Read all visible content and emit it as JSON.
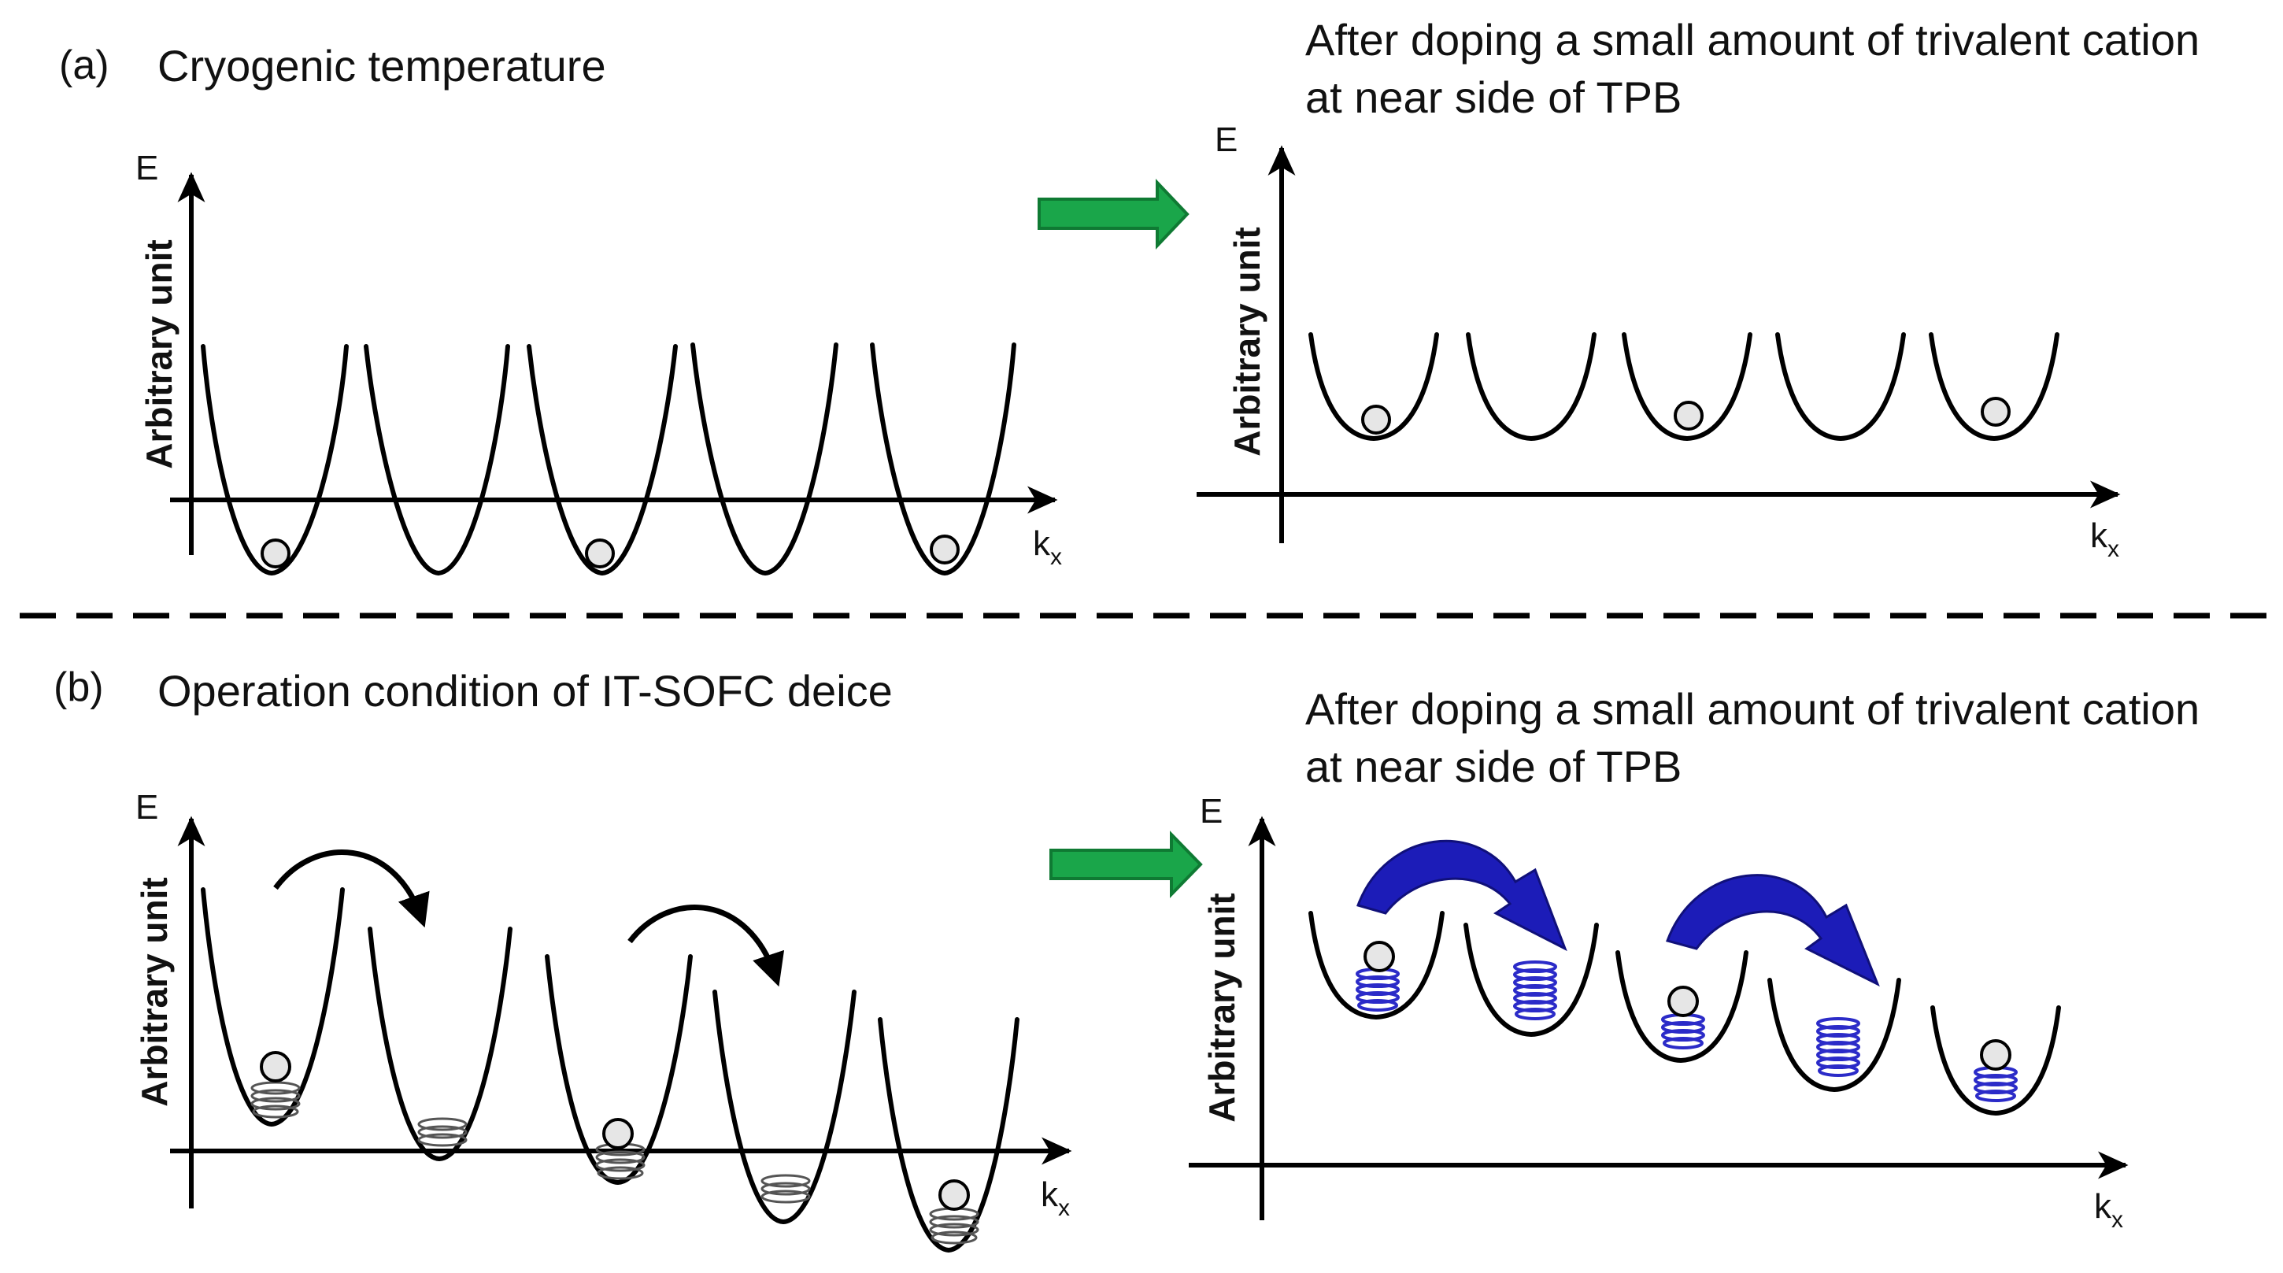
{
  "panel_a": {
    "label": "(a)",
    "title": "Cryogenic temperature",
    "doped_title_line1": "After doping a small amount of trivalent cation",
    "doped_title_line2": "at near side of TPB"
  },
  "panel_b": {
    "label": "(b)",
    "title": "Operation condition of IT-SOFC deice",
    "doped_title_line1": "After doping a small amount of trivalent cation",
    "doped_title_line2": "at near side of TPB"
  },
  "axes": {
    "y_symbol": "E",
    "x_symbol": "k",
    "x_subscript": "x",
    "y_label": "Arbitrary unit"
  },
  "colors": {
    "transition_arrow": "#1aa64a",
    "hop_arrow_doped": "#1c1cb8",
    "spring_doped": "#2b2bc8",
    "ball_fill": "#e6e6e6"
  }
}
